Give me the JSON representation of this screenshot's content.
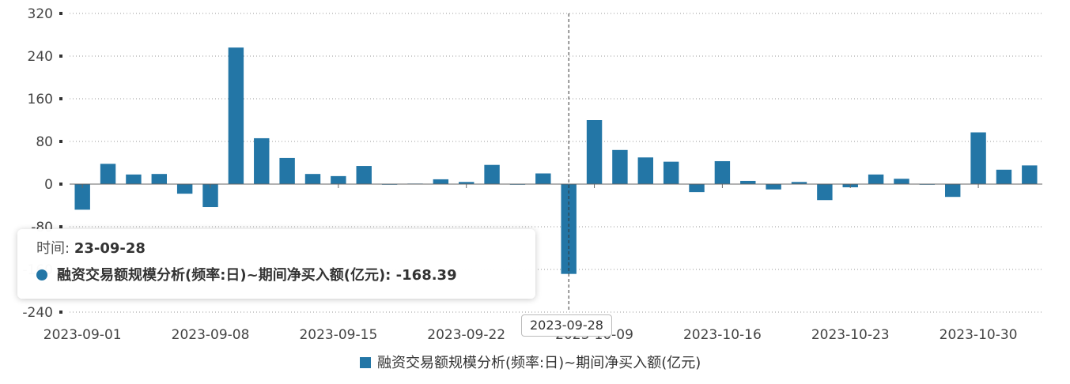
{
  "chart_data": {
    "type": "bar",
    "categories": [
      "2023-09-01",
      "2023-09-04",
      "2023-09-05",
      "2023-09-06",
      "2023-09-07",
      "2023-09-08",
      "2023-09-11",
      "2023-09-12",
      "2023-09-13",
      "2023-09-14",
      "2023-09-15",
      "2023-09-18",
      "2023-09-19",
      "2023-09-20",
      "2023-09-21",
      "2023-09-22",
      "2023-09-25",
      "2023-09-26",
      "2023-09-27",
      "2023-09-28",
      "2023-10-09",
      "2023-10-10",
      "2023-10-11",
      "2023-10-12",
      "2023-10-13",
      "2023-10-16",
      "2023-10-17",
      "2023-10-18",
      "2023-10-19",
      "2023-10-20",
      "2023-10-23",
      "2023-10-24",
      "2023-10-25",
      "2023-10-26",
      "2023-10-27",
      "2023-10-30",
      "2023-10-31",
      "2023-11-01"
    ],
    "series": [
      {
        "name": "融资交易额规模分析(频率:日)~期间净买入额(亿元)",
        "values": [
          -48,
          38,
          18,
          19,
          -18,
          -43,
          256,
          86,
          49,
          19,
          15,
          34,
          0,
          1,
          9,
          4,
          36,
          -1,
          20,
          -168.39,
          120,
          64,
          50,
          42,
          -15,
          43,
          6,
          -10,
          4,
          -30,
          -6,
          18,
          10,
          0,
          -24,
          97,
          27,
          35
        ]
      }
    ],
    "xtick_labels": [
      "2023-09-01",
      "2023-09-08",
      "2023-09-15",
      "2023-09-22",
      "2023-10-09",
      "2023-10-16",
      "2023-10-23",
      "2023-10-30"
    ],
    "yticks": [
      320,
      240,
      160,
      80,
      0,
      -80,
      -160,
      -240
    ],
    "ylim": [
      -240,
      320
    ],
    "grid": "horizontal-dotted",
    "legend": "bottom-center",
    "bar_color": "#2376a6"
  },
  "tooltip": {
    "time_label": "时间:",
    "time_value": "23-09-28",
    "series_label": "融资交易额规模分析(频率:日)~期间净买入额(亿元):",
    "series_value": "-168.39"
  },
  "axis_pointer_label": "2023-09-28",
  "legend_label": "融资交易额规模分析(频率:日)~期间净买入额(亿元)"
}
